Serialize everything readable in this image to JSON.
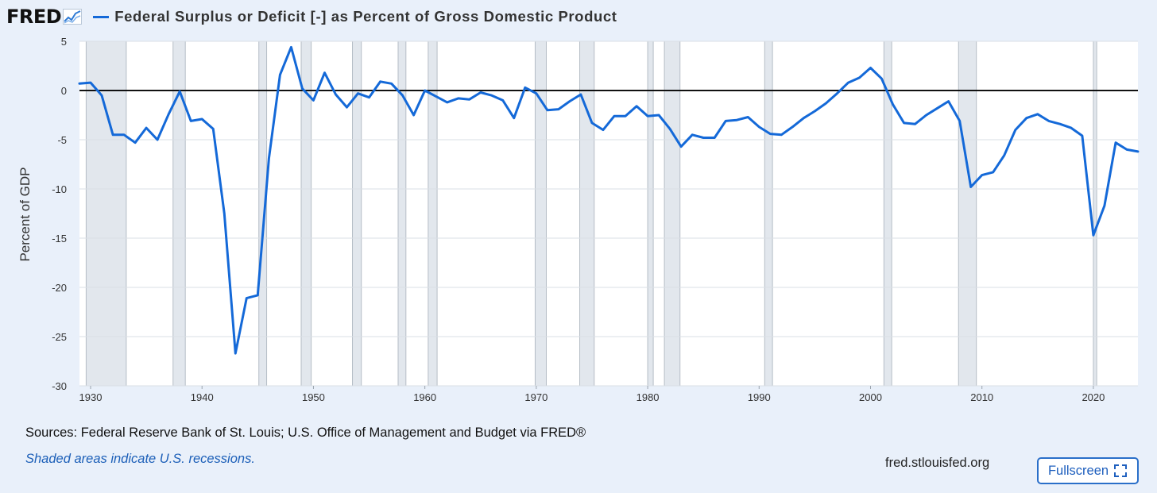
{
  "header": {
    "logo_text": "FRED",
    "logo_icon": "chart-line-icon",
    "title": "Federal Surplus or Deficit [-] as Percent of Gross Domestic Product"
  },
  "chart_data": {
    "type": "line",
    "title": "Federal Surplus or Deficit [-] as Percent of Gross Domestic Product",
    "ylabel": "Percent of GDP",
    "xlabel": "",
    "xlim": [
      1929,
      2024
    ],
    "ylim": [
      -30,
      5
    ],
    "x_ticks": [
      1930,
      1940,
      1950,
      1960,
      1970,
      1980,
      1990,
      2000,
      2010,
      2020
    ],
    "y_ticks": [
      5,
      0,
      -5,
      -10,
      -15,
      -20,
      -25,
      -30
    ],
    "grid": true,
    "legend": "top-left",
    "reference_line": 0,
    "series": [
      {
        "color": "#1469d8",
        "x": [
          1929,
          1930,
          1931,
          1932,
          1933,
          1934,
          1935,
          1936,
          1937,
          1938,
          1939,
          1940,
          1941,
          1942,
          1943,
          1944,
          1945,
          1946,
          1947,
          1948,
          1949,
          1950,
          1951,
          1952,
          1953,
          1954,
          1955,
          1956,
          1957,
          1958,
          1959,
          1960,
          1961,
          1962,
          1963,
          1964,
          1965,
          1966,
          1967,
          1968,
          1969,
          1970,
          1971,
          1972,
          1973,
          1974,
          1975,
          1976,
          1977,
          1978,
          1979,
          1980,
          1981,
          1982,
          1983,
          1984,
          1985,
          1986,
          1987,
          1988,
          1989,
          1990,
          1991,
          1992,
          1993,
          1994,
          1995,
          1996,
          1997,
          1998,
          1999,
          2000,
          2001,
          2002,
          2003,
          2004,
          2005,
          2006,
          2007,
          2008,
          2009,
          2010,
          2011,
          2012,
          2013,
          2014,
          2015,
          2016,
          2017,
          2018,
          2019,
          2020,
          2021,
          2022,
          2023,
          2024
        ],
        "values": [
          0.7,
          0.8,
          -0.5,
          -4.5,
          -4.5,
          -5.3,
          -3.8,
          -5.0,
          -2.4,
          -0.1,
          -3.1,
          -2.9,
          -3.9,
          -12.5,
          -26.7,
          -21.1,
          -20.8,
          -6.9,
          1.6,
          4.4,
          0.2,
          -1.0,
          1.8,
          -0.4,
          -1.7,
          -0.3,
          -0.7,
          0.9,
          0.7,
          -0.5,
          -2.5,
          0.0,
          -0.6,
          -1.2,
          -0.8,
          -0.9,
          -0.2,
          -0.5,
          -1.0,
          -2.8,
          0.3,
          -0.3,
          -2.0,
          -1.9,
          -1.1,
          -0.4,
          -3.3,
          -4.0,
          -2.6,
          -2.6,
          -1.6,
          -2.6,
          -2.5,
          -3.9,
          -5.7,
          -4.5,
          -4.8,
          -4.8,
          -3.1,
          -3.0,
          -2.7,
          -3.7,
          -4.4,
          -4.5,
          -3.7,
          -2.8,
          -2.1,
          -1.3,
          -0.3,
          0.8,
          1.3,
          2.3,
          1.2,
          -1.4,
          -3.3,
          -3.4,
          -2.5,
          -1.8,
          -1.1,
          -3.1,
          -9.8,
          -8.6,
          -8.3,
          -6.6,
          -4.0,
          -2.8,
          -2.4,
          -3.1,
          -3.4,
          -3.8,
          -4.6,
          -14.7,
          -11.7,
          -5.3,
          -6.0,
          -6.2
        ]
      }
    ],
    "recessions": [
      [
        1929.6,
        1933.2
      ],
      [
        1937.4,
        1938.5
      ],
      [
        1945.1,
        1945.8
      ],
      [
        1948.9,
        1949.8
      ],
      [
        1953.5,
        1954.3
      ],
      [
        1957.6,
        1958.3
      ],
      [
        1960.3,
        1961.1
      ],
      [
        1969.9,
        1970.9
      ],
      [
        1973.9,
        1975.2
      ],
      [
        1980.0,
        1980.5
      ],
      [
        1981.5,
        1982.9
      ],
      [
        1990.5,
        1991.2
      ],
      [
        2001.2,
        2001.9
      ],
      [
        2007.9,
        2009.5
      ],
      [
        2020.0,
        2020.3
      ]
    ]
  },
  "footer": {
    "source": "Sources: Federal Reserve Bank of St. Louis; U.S. Office of Management and Budget via FRED®",
    "note": "Shaded areas indicate U.S. recessions.",
    "site": "fred.stlouisfed.org",
    "fullscreen_label": "Fullscreen",
    "fullscreen_icon": "expand-icon"
  }
}
